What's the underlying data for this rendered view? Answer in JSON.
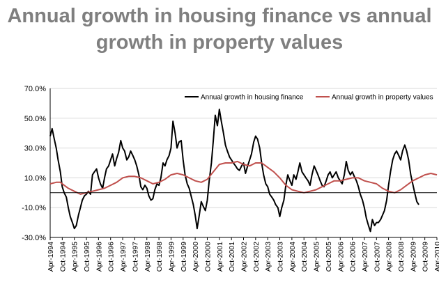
{
  "chart_data": {
    "type": "line",
    "title_lines": [
      "Annual growth in housing finance vs annual",
      "growth in property values"
    ],
    "xlabel": "",
    "ylabel": "",
    "ylim": [
      -30,
      70
    ],
    "y_ticks": [
      70,
      50,
      30,
      10,
      -10,
      -30
    ],
    "y_tick_labels": [
      "70.0%",
      "50.0%",
      "30.0%",
      "10.0%",
      "-10.0%",
      "-30.0%"
    ],
    "x_range": [
      1994.25,
      2010.25
    ],
    "x_tick_labels": [
      "Apr-1994",
      "Oct-1994",
      "Apr-1995",
      "Oct-1995",
      "Apr-1996",
      "Oct-1996",
      "Apr-1997",
      "Oct-1997",
      "Apr-1998",
      "Oct-1998",
      "Apr-1999",
      "Oct-1999",
      "Apr-2000",
      "Oct-2000",
      "Apr-2001",
      "Oct-2001",
      "Apr-2002",
      "Oct-2002",
      "Apr-2003",
      "Oct-2003",
      "Apr-2004",
      "Oct-2004",
      "Apr-2005",
      "Oct-2005",
      "Apr-2006",
      "Oct-2006",
      "Apr-2007",
      "Oct-2007",
      "Apr-2008",
      "Oct-2008",
      "Apr-2009",
      "Oct-2009",
      "Apr-2010"
    ],
    "legend_position": "top-right",
    "series": [
      {
        "name": "Annual growth in housing finance",
        "color": "#000000",
        "points": [
          [
            1994.25,
            38
          ],
          [
            1994.33,
            43
          ],
          [
            1994.42,
            36
          ],
          [
            1994.5,
            30
          ],
          [
            1994.58,
            22
          ],
          [
            1994.67,
            14
          ],
          [
            1994.75,
            4
          ],
          [
            1994.83,
            0
          ],
          [
            1994.92,
            -3
          ],
          [
            1995.0,
            -10
          ],
          [
            1995.08,
            -16
          ],
          [
            1995.17,
            -20
          ],
          [
            1995.25,
            -24
          ],
          [
            1995.33,
            -22
          ],
          [
            1995.42,
            -15
          ],
          [
            1995.5,
            -10
          ],
          [
            1995.58,
            -5
          ],
          [
            1995.67,
            -2
          ],
          [
            1995.75,
            -1
          ],
          [
            1995.83,
            1
          ],
          [
            1995.92,
            -1
          ],
          [
            1996.0,
            12
          ],
          [
            1996.08,
            14
          ],
          [
            1996.17,
            16
          ],
          [
            1996.25,
            10
          ],
          [
            1996.33,
            6
          ],
          [
            1996.42,
            3
          ],
          [
            1996.5,
            10
          ],
          [
            1996.58,
            16
          ],
          [
            1996.67,
            18
          ],
          [
            1996.75,
            22
          ],
          [
            1996.83,
            26
          ],
          [
            1996.92,
            18
          ],
          [
            1997.0,
            23
          ],
          [
            1997.08,
            27
          ],
          [
            1997.17,
            35
          ],
          [
            1997.25,
            30
          ],
          [
            1997.33,
            28
          ],
          [
            1997.42,
            22
          ],
          [
            1997.5,
            24
          ],
          [
            1997.58,
            28
          ],
          [
            1997.67,
            25
          ],
          [
            1997.75,
            22
          ],
          [
            1997.83,
            18
          ],
          [
            1997.92,
            12
          ],
          [
            1998.0,
            4
          ],
          [
            1998.08,
            2
          ],
          [
            1998.17,
            5
          ],
          [
            1998.25,
            3
          ],
          [
            1998.33,
            -2
          ],
          [
            1998.42,
            -5
          ],
          [
            1998.5,
            -4
          ],
          [
            1998.58,
            2
          ],
          [
            1998.67,
            6
          ],
          [
            1998.75,
            5
          ],
          [
            1998.83,
            10
          ],
          [
            1998.92,
            20
          ],
          [
            1999.0,
            18
          ],
          [
            1999.08,
            22
          ],
          [
            1999.17,
            25
          ],
          [
            1999.25,
            30
          ],
          [
            1999.33,
            48
          ],
          [
            1999.42,
            40
          ],
          [
            1999.5,
            30
          ],
          [
            1999.58,
            34
          ],
          [
            1999.67,
            35
          ],
          [
            1999.75,
            22
          ],
          [
            1999.83,
            12
          ],
          [
            1999.92,
            6
          ],
          [
            2000.0,
            3
          ],
          [
            2000.08,
            -2
          ],
          [
            2000.17,
            -8
          ],
          [
            2000.25,
            -15
          ],
          [
            2000.33,
            -24
          ],
          [
            2000.42,
            -15
          ],
          [
            2000.5,
            -6
          ],
          [
            2000.58,
            -9
          ],
          [
            2000.67,
            -12
          ],
          [
            2000.75,
            -5
          ],
          [
            2000.83,
            8
          ],
          [
            2000.92,
            20
          ],
          [
            2001.0,
            35
          ],
          [
            2001.08,
            52
          ],
          [
            2001.17,
            45
          ],
          [
            2001.25,
            56
          ],
          [
            2001.33,
            48
          ],
          [
            2001.42,
            40
          ],
          [
            2001.5,
            32
          ],
          [
            2001.58,
            28
          ],
          [
            2001.67,
            24
          ],
          [
            2001.75,
            22
          ],
          [
            2001.83,
            20
          ],
          [
            2001.92,
            18
          ],
          [
            2002.0,
            16
          ],
          [
            2002.08,
            15
          ],
          [
            2002.17,
            18
          ],
          [
            2002.25,
            20
          ],
          [
            2002.33,
            13
          ],
          [
            2002.42,
            18
          ],
          [
            2002.5,
            22
          ],
          [
            2002.58,
            26
          ],
          [
            2002.67,
            34
          ],
          [
            2002.75,
            38
          ],
          [
            2002.83,
            36
          ],
          [
            2002.92,
            30
          ],
          [
            2003.0,
            20
          ],
          [
            2003.08,
            12
          ],
          [
            2003.17,
            6
          ],
          [
            2003.25,
            4
          ],
          [
            2003.33,
            -1
          ],
          [
            2003.42,
            -3
          ],
          [
            2003.5,
            -5
          ],
          [
            2003.58,
            -8
          ],
          [
            2003.67,
            -10
          ],
          [
            2003.75,
            -16
          ],
          [
            2003.83,
            -10
          ],
          [
            2003.92,
            -5
          ],
          [
            2004.0,
            5
          ],
          [
            2004.08,
            12
          ],
          [
            2004.17,
            8
          ],
          [
            2004.25,
            5
          ],
          [
            2004.33,
            12
          ],
          [
            2004.42,
            9
          ],
          [
            2004.5,
            14
          ],
          [
            2004.58,
            20
          ],
          [
            2004.67,
            14
          ],
          [
            2004.75,
            12
          ],
          [
            2004.83,
            10
          ],
          [
            2004.92,
            8
          ],
          [
            2005.0,
            5
          ],
          [
            2005.08,
            12
          ],
          [
            2005.17,
            18
          ],
          [
            2005.25,
            15
          ],
          [
            2005.33,
            12
          ],
          [
            2005.42,
            8
          ],
          [
            2005.5,
            5
          ],
          [
            2005.58,
            4
          ],
          [
            2005.67,
            8
          ],
          [
            2005.75,
            12
          ],
          [
            2005.83,
            14
          ],
          [
            2005.92,
            10
          ],
          [
            2006.0,
            12
          ],
          [
            2006.08,
            14
          ],
          [
            2006.17,
            10
          ],
          [
            2006.25,
            8
          ],
          [
            2006.33,
            6
          ],
          [
            2006.42,
            12
          ],
          [
            2006.5,
            21
          ],
          [
            2006.58,
            15
          ],
          [
            2006.67,
            12
          ],
          [
            2006.75,
            14
          ],
          [
            2006.83,
            11
          ],
          [
            2006.92,
            8
          ],
          [
            2007.0,
            4
          ],
          [
            2007.08,
            -1
          ],
          [
            2007.17,
            -5
          ],
          [
            2007.25,
            -10
          ],
          [
            2007.33,
            -17
          ],
          [
            2007.42,
            -22
          ],
          [
            2007.5,
            -26
          ],
          [
            2007.58,
            -18
          ],
          [
            2007.67,
            -22
          ],
          [
            2007.75,
            -20
          ],
          [
            2007.83,
            -20
          ],
          [
            2007.92,
            -18
          ],
          [
            2008.0,
            -15
          ],
          [
            2008.08,
            -12
          ],
          [
            2008.17,
            -5
          ],
          [
            2008.25,
            5
          ],
          [
            2008.33,
            14
          ],
          [
            2008.42,
            22
          ],
          [
            2008.5,
            26
          ],
          [
            2008.58,
            28
          ],
          [
            2008.67,
            25
          ],
          [
            2008.75,
            22
          ],
          [
            2008.83,
            28
          ],
          [
            2008.92,
            32
          ],
          [
            2009.0,
            28
          ],
          [
            2009.08,
            22
          ],
          [
            2009.17,
            12
          ],
          [
            2009.25,
            6
          ],
          [
            2009.33,
            0
          ],
          [
            2009.42,
            -6
          ],
          [
            2009.5,
            -8
          ]
        ]
      },
      {
        "name": "Annual growth in property values",
        "color": "#c0504d",
        "points": [
          [
            1994.25,
            6
          ],
          [
            1994.5,
            7
          ],
          [
            1994.67,
            7
          ],
          [
            1994.83,
            5
          ],
          [
            1995.0,
            3
          ],
          [
            1995.25,
            1
          ],
          [
            1995.5,
            -1
          ],
          [
            1995.75,
            0
          ],
          [
            1996.0,
            1
          ],
          [
            1996.25,
            2
          ],
          [
            1996.5,
            3
          ],
          [
            1996.75,
            5
          ],
          [
            1997.0,
            7
          ],
          [
            1997.25,
            10
          ],
          [
            1997.5,
            11
          ],
          [
            1997.75,
            11
          ],
          [
            1998.0,
            10
          ],
          [
            1998.25,
            8
          ],
          [
            1998.5,
            6
          ],
          [
            1998.75,
            7
          ],
          [
            1999.0,
            9
          ],
          [
            1999.25,
            12
          ],
          [
            1999.5,
            13
          ],
          [
            1999.75,
            12
          ],
          [
            2000.0,
            10
          ],
          [
            2000.25,
            8
          ],
          [
            2000.5,
            7
          ],
          [
            2000.75,
            9
          ],
          [
            2001.0,
            14
          ],
          [
            2001.25,
            19
          ],
          [
            2001.5,
            20
          ],
          [
            2001.75,
            20
          ],
          [
            2002.0,
            21
          ],
          [
            2002.25,
            19
          ],
          [
            2002.5,
            18
          ],
          [
            2002.75,
            20
          ],
          [
            2003.0,
            20
          ],
          [
            2003.25,
            17
          ],
          [
            2003.5,
            14
          ],
          [
            2003.75,
            10
          ],
          [
            2004.0,
            5
          ],
          [
            2004.25,
            2
          ],
          [
            2004.5,
            1
          ],
          [
            2004.75,
            0
          ],
          [
            2005.0,
            1
          ],
          [
            2005.25,
            2
          ],
          [
            2005.5,
            4
          ],
          [
            2005.75,
            6
          ],
          [
            2006.0,
            8
          ],
          [
            2006.25,
            8
          ],
          [
            2006.5,
            9
          ],
          [
            2006.75,
            10
          ],
          [
            2007.0,
            10
          ],
          [
            2007.25,
            8
          ],
          [
            2007.5,
            7
          ],
          [
            2007.75,
            6
          ],
          [
            2008.0,
            3
          ],
          [
            2008.25,
            1
          ],
          [
            2008.5,
            0
          ],
          [
            2008.75,
            2
          ],
          [
            2009.0,
            5
          ],
          [
            2009.25,
            8
          ],
          [
            2009.5,
            10
          ],
          [
            2009.75,
            12
          ],
          [
            2010.0,
            13
          ],
          [
            2010.25,
            12
          ]
        ]
      }
    ]
  }
}
